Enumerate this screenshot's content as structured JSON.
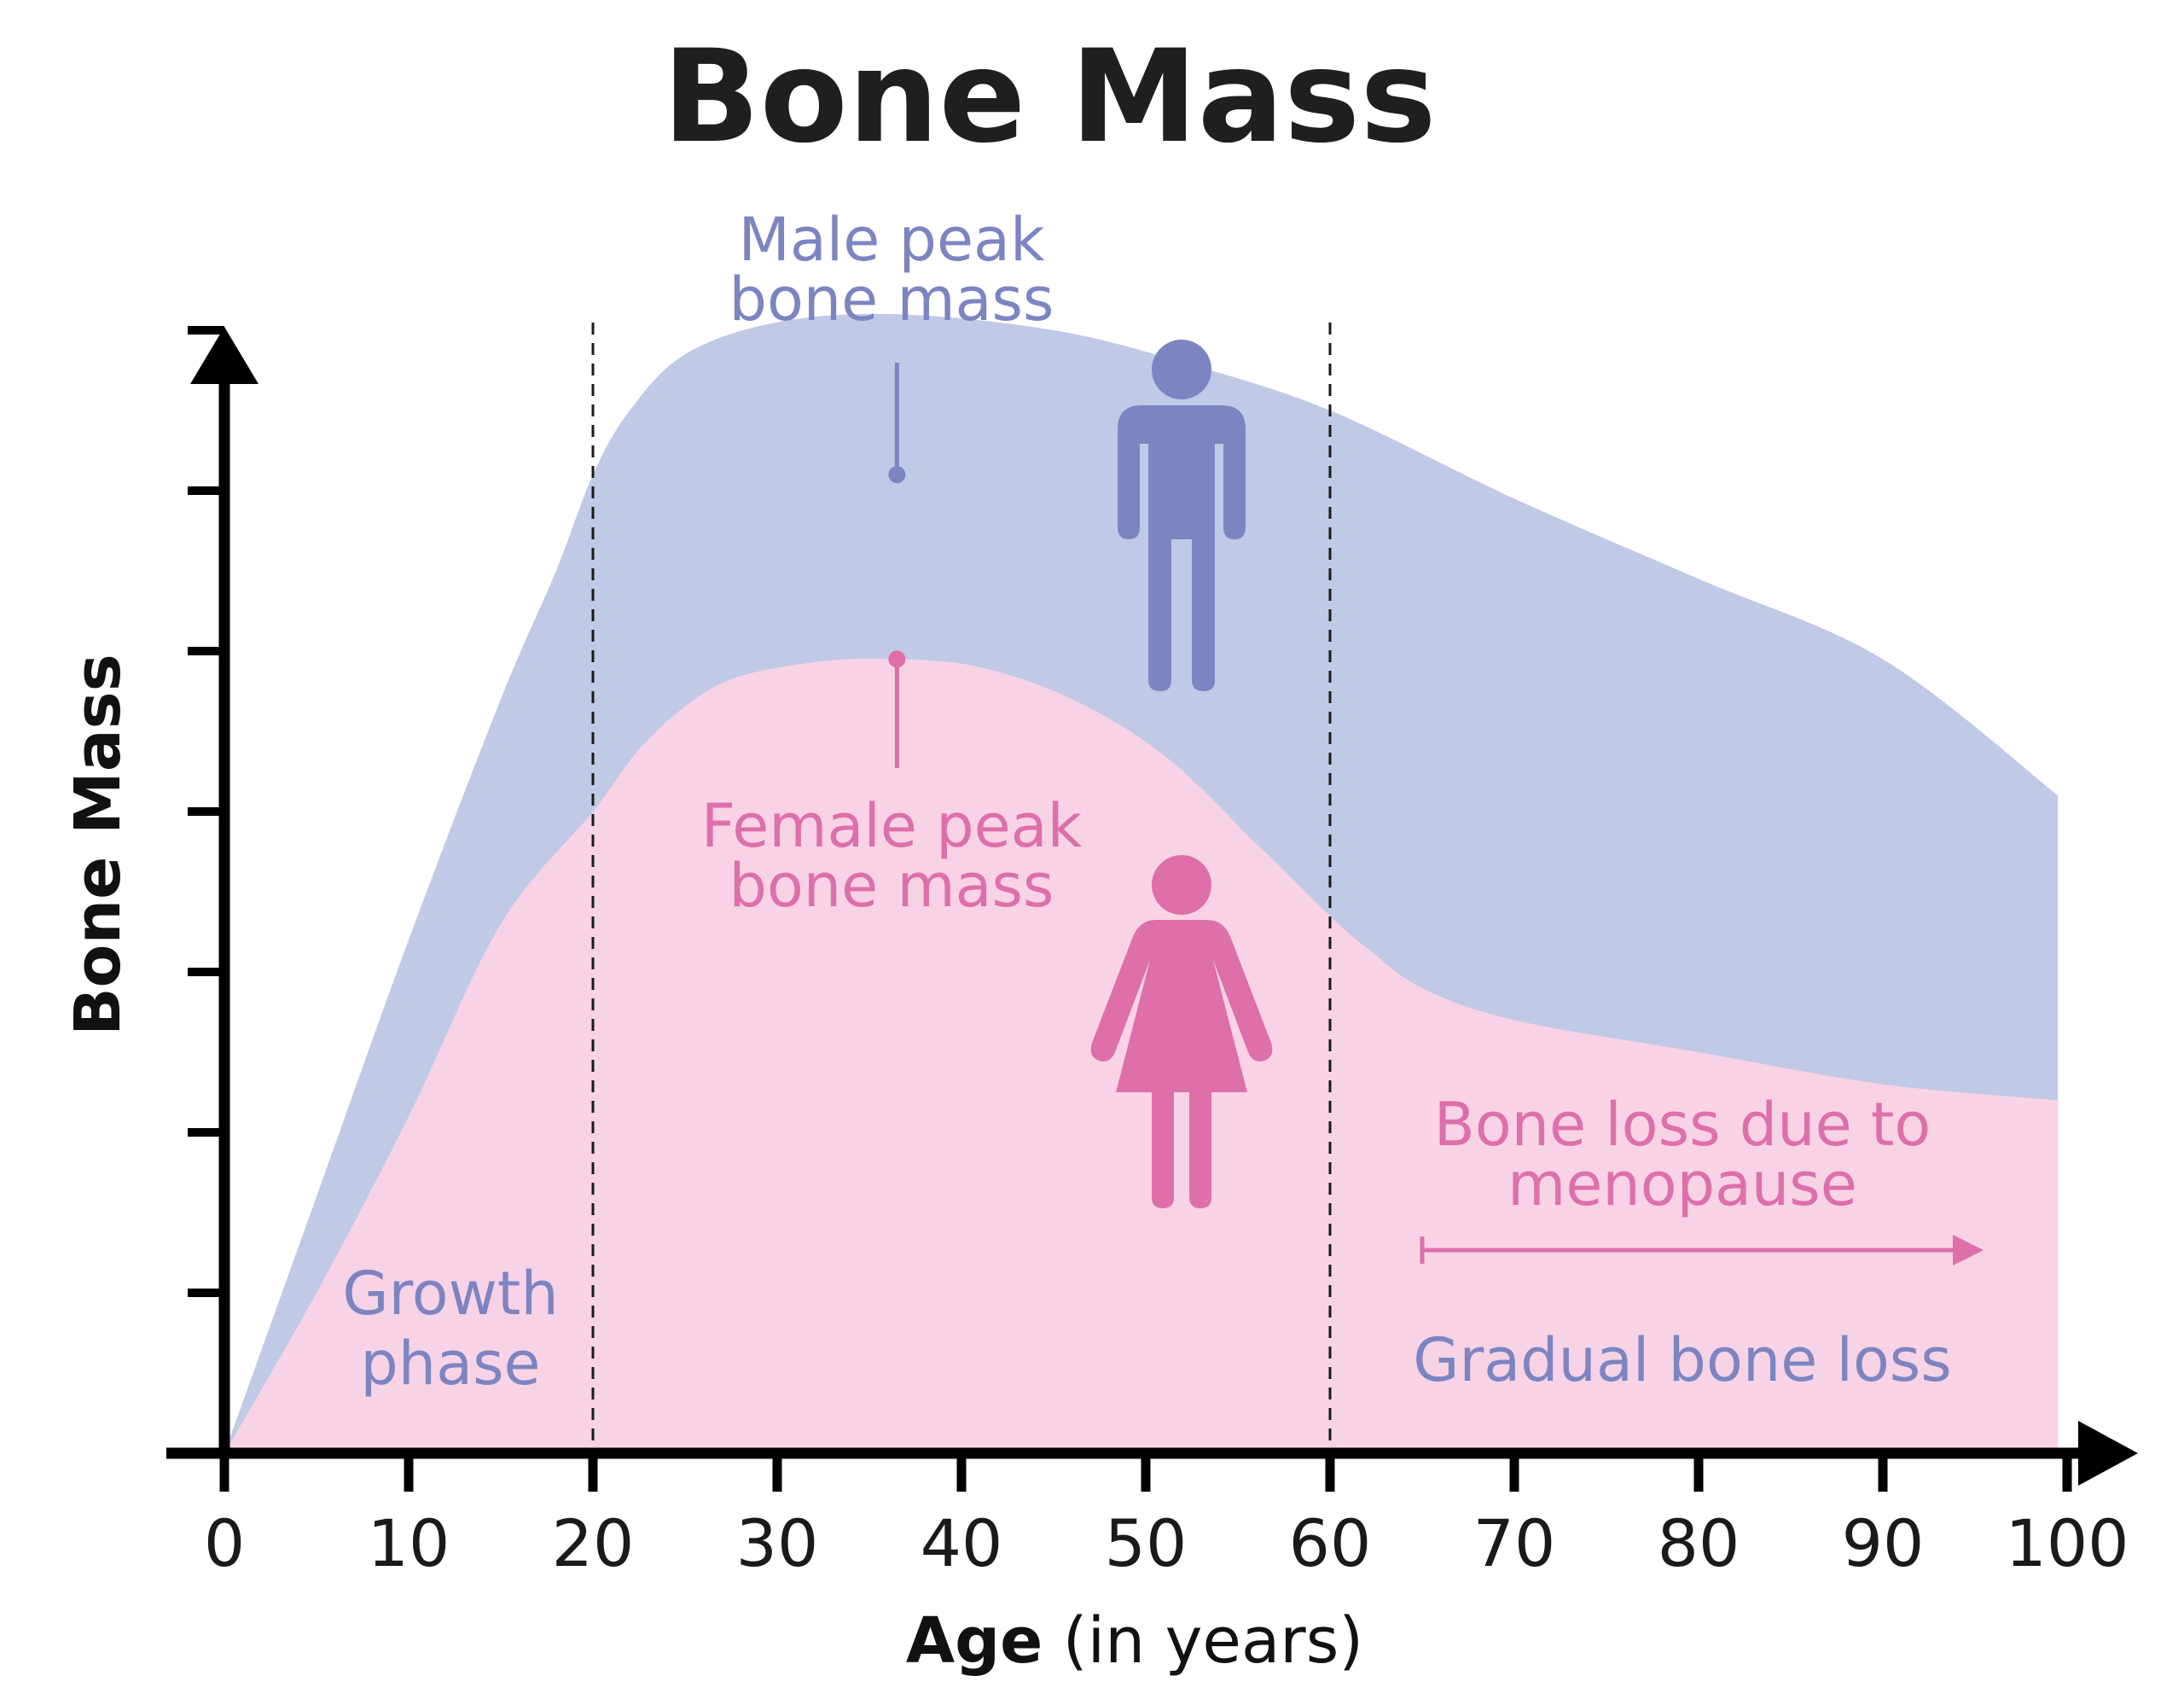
{
  "chart_data": {
    "type": "area",
    "title": "Bone Mass",
    "xlabel_bold": "Age",
    "xlabel_rest": " (in years)",
    "ylabel": "Bone Mass",
    "xlim": [
      0,
      100
    ],
    "ylim": [
      0,
      8
    ],
    "x_ticks": [
      0,
      10,
      20,
      30,
      40,
      50,
      60,
      70,
      80,
      90,
      100
    ],
    "x_tick_labels": [
      "0",
      "10",
      "20",
      "30",
      "40",
      "50",
      "60",
      "70",
      "80",
      "90",
      "100"
    ],
    "y_ticks": [
      1,
      2,
      3,
      4,
      5,
      6,
      7
    ],
    "reference_lines_x": [
      20,
      60
    ],
    "series": [
      {
        "key": "male",
        "color": "#c0c9e6",
        "x": [
          0,
          5,
          10,
          15,
          18,
          20,
          22,
          25,
          30,
          36.5,
          45,
          52,
          60,
          70,
          80,
          90,
          99.5
        ],
        "values": [
          0,
          1.6,
          3.2,
          4.7,
          5.5,
          6.1,
          6.5,
          6.85,
          7.05,
          7.1,
          7.0,
          6.8,
          6.5,
          5.95,
          5.45,
          4.95,
          4.1
        ]
      },
      {
        "key": "female",
        "color": "#f8d3e5",
        "x": [
          0,
          5,
          10,
          15,
          20,
          23,
          27,
          32,
          36.5,
          41,
          46,
          51,
          56,
          60,
          62,
          65,
          70,
          80,
          90,
          99.5
        ],
        "values": [
          0,
          1.0,
          2.1,
          3.3,
          4.0,
          4.45,
          4.8,
          4.93,
          4.95,
          4.9,
          4.7,
          4.35,
          3.8,
          3.35,
          3.15,
          2.9,
          2.7,
          2.5,
          2.3,
          2.2
        ]
      }
    ],
    "annotations": {
      "male_peak": {
        "line1": "Male peak",
        "line2": "bone mass",
        "x": 36.5,
        "y": 6.1,
        "color": "#7c85c2"
      },
      "female_peak": {
        "line1": "Female peak",
        "line2": "bone mass",
        "x": 36.5,
        "y": 4.95,
        "color": "#de6fa9"
      },
      "growth_phase": {
        "line1": "Growth",
        "line2": "phase",
        "color": "#7c85c2"
      },
      "menopause": {
        "line1": "Bone loss due to",
        "line2": "menopause",
        "arrow_from_x": 65,
        "arrow_to_x": 95,
        "color": "#de6fa9"
      },
      "gradual": {
        "text": "Gradual bone loss",
        "color": "#7c85c2"
      }
    },
    "icons": [
      {
        "name": "male-figure-icon",
        "color": "#7c85c2"
      },
      {
        "name": "female-figure-icon",
        "color": "#de6fa9"
      }
    ],
    "grid": false,
    "legend": "none"
  }
}
